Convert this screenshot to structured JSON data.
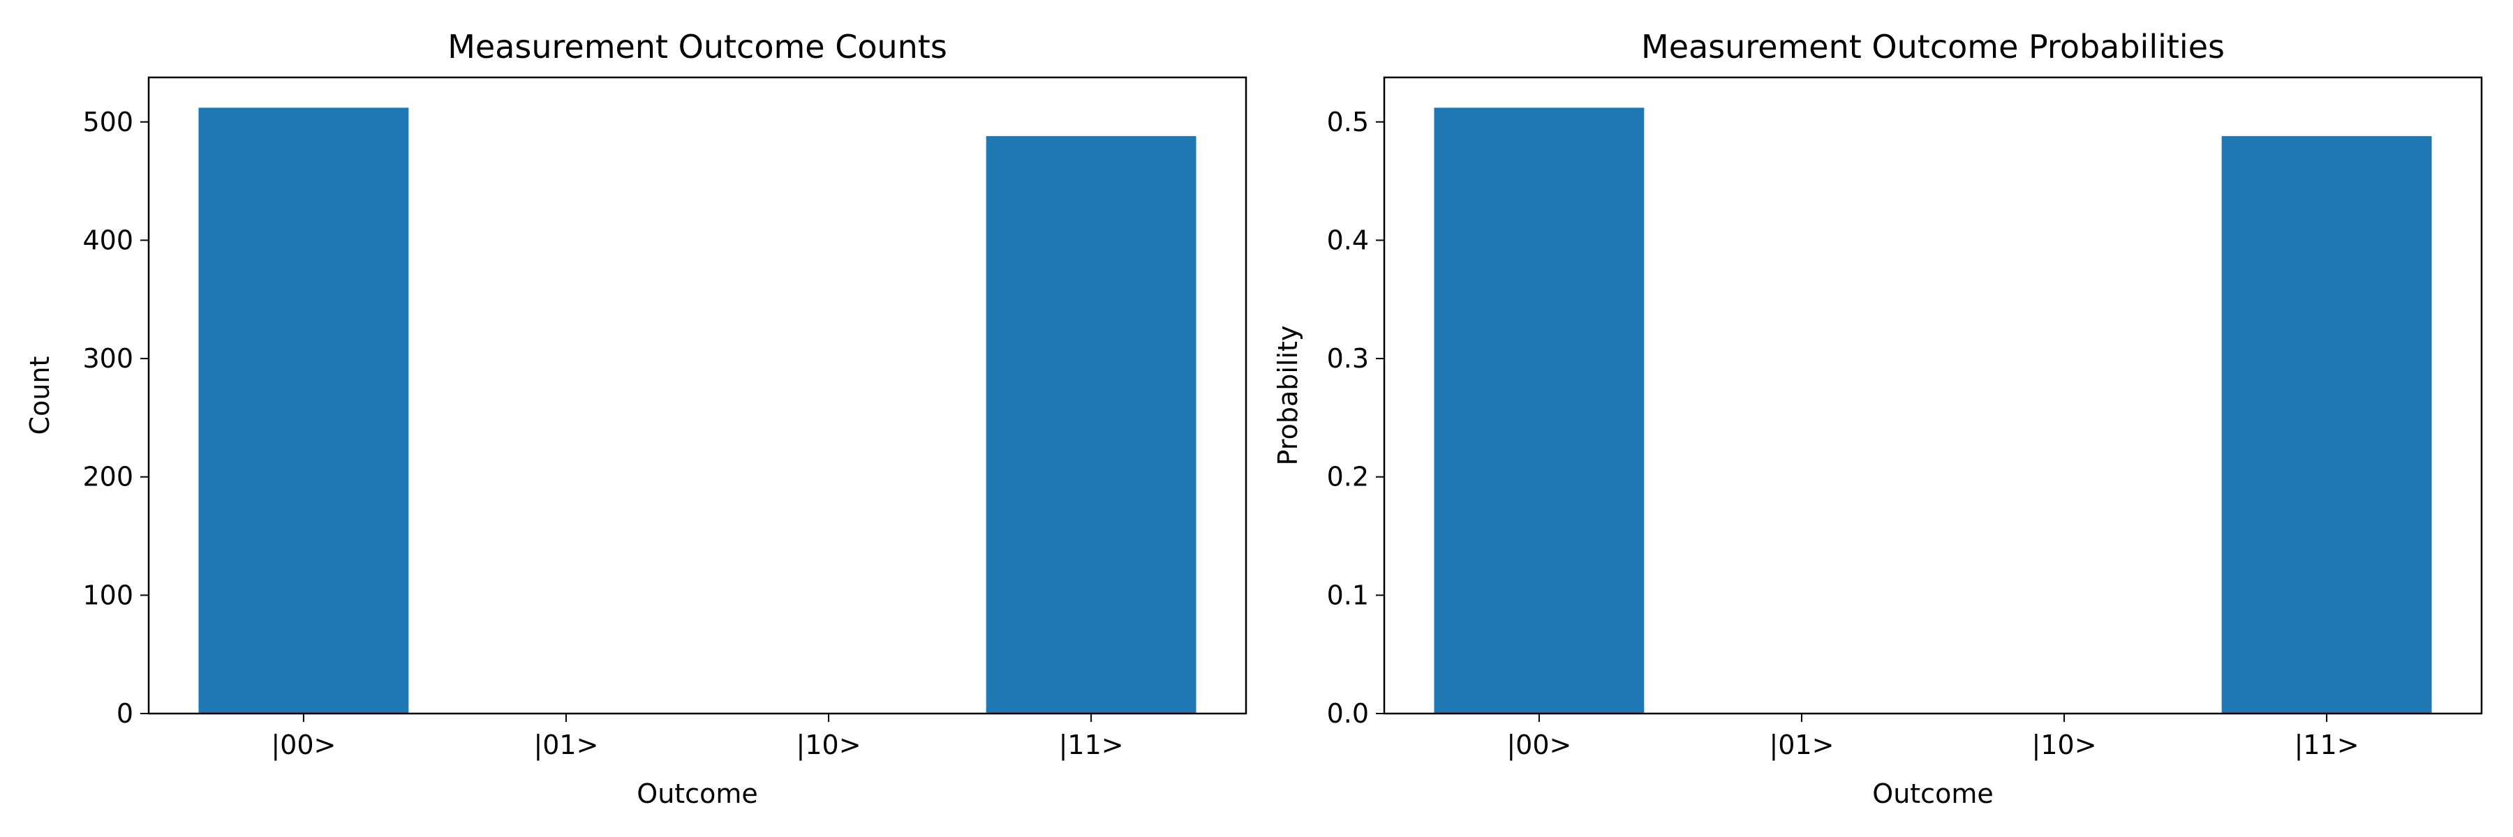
{
  "colors": {
    "bar": "#1f77b4",
    "axis": "#000000",
    "background": "#ffffff"
  },
  "chart_data": [
    {
      "type": "bar",
      "title": "Measurement Outcome Counts",
      "xlabel": "Outcome",
      "ylabel": "Count",
      "categories": [
        "|00>",
        "|01>",
        "|10>",
        "|11>"
      ],
      "values": [
        512,
        0,
        0,
        488
      ],
      "ylim": [
        0,
        537.6
      ],
      "yticks": [
        0,
        100,
        200,
        300,
        400,
        500
      ],
      "ytick_labels": [
        "0",
        "100",
        "200",
        "300",
        "400",
        "500"
      ],
      "grid": false,
      "legend": "none"
    },
    {
      "type": "bar",
      "title": "Measurement Outcome Probabilities",
      "xlabel": "Outcome",
      "ylabel": "Probability",
      "categories": [
        "|00>",
        "|01>",
        "|10>",
        "|11>"
      ],
      "values": [
        0.512,
        0,
        0,
        0.488
      ],
      "ylim": [
        0,
        0.5376
      ],
      "yticks": [
        0,
        0.1,
        0.2,
        0.3,
        0.4,
        0.5
      ],
      "ytick_labels": [
        "0.0",
        "0.1",
        "0.2",
        "0.3",
        "0.4",
        "0.5"
      ],
      "grid": false,
      "legend": "none"
    }
  ]
}
